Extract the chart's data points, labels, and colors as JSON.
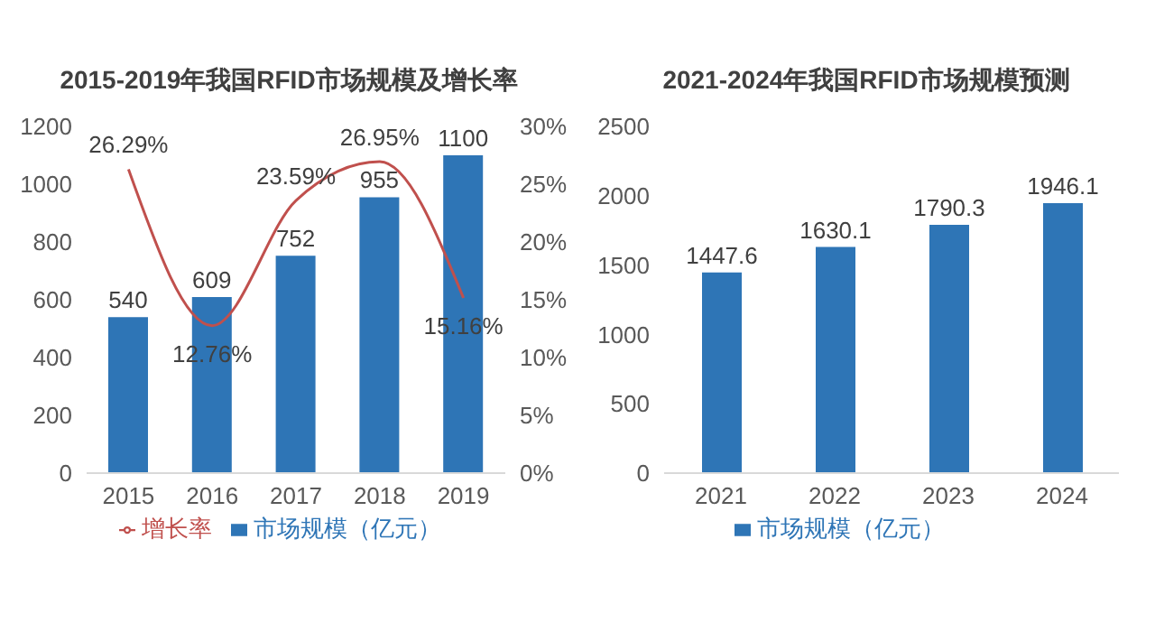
{
  "chart_data": [
    {
      "type": "bar",
      "title": "2015-2019年我国RFID市场规模及增长率",
      "categories": [
        "2015",
        "2016",
        "2017",
        "2018",
        "2019"
      ],
      "series": [
        {
          "name": "市场规模（亿元）",
          "color": "#2e75b6",
          "values": [
            540,
            609,
            752,
            955,
            1100
          ]
        },
        {
          "name": "增长率",
          "type": "line",
          "axis": "y2",
          "color": "#c0504d",
          "values": [
            26.29,
            12.76,
            23.59,
            26.95,
            15.16
          ],
          "value_labels": [
            "26.29%",
            "12.76%",
            "23.59%",
            "26.95%",
            "15.16%"
          ]
        }
      ],
      "ylim": [
        0,
        1200
      ],
      "yticks": [
        0,
        200,
        400,
        600,
        800,
        1000,
        1200
      ],
      "y2lim": [
        0,
        30
      ],
      "y2ticks": [
        {
          "value": 0,
          "label": "0%"
        },
        {
          "value": 5,
          "label": "5%"
        },
        {
          "value": 10,
          "label": "10%"
        },
        {
          "value": 15,
          "label": "15%"
        },
        {
          "value": 20,
          "label": "20%"
        },
        {
          "value": 25,
          "label": "25%"
        },
        {
          "value": 30,
          "label": "30%"
        }
      ],
      "data_labels": true,
      "legend": "bottom",
      "marker": "none"
    },
    {
      "type": "bar",
      "title": "2021-2024年我国RFID市场规模预测",
      "categories": [
        "2021",
        "2022",
        "2023",
        "2024"
      ],
      "series": [
        {
          "name": "市场规模（亿元）",
          "color": "#2e75b6",
          "values": [
            1447.6,
            1630.1,
            1790.3,
            1946.1
          ]
        }
      ],
      "ylim": [
        0,
        2500
      ],
      "yticks": [
        0,
        500,
        1000,
        1500,
        2000,
        2500
      ],
      "data_labels": true,
      "legend": "bottom"
    }
  ]
}
